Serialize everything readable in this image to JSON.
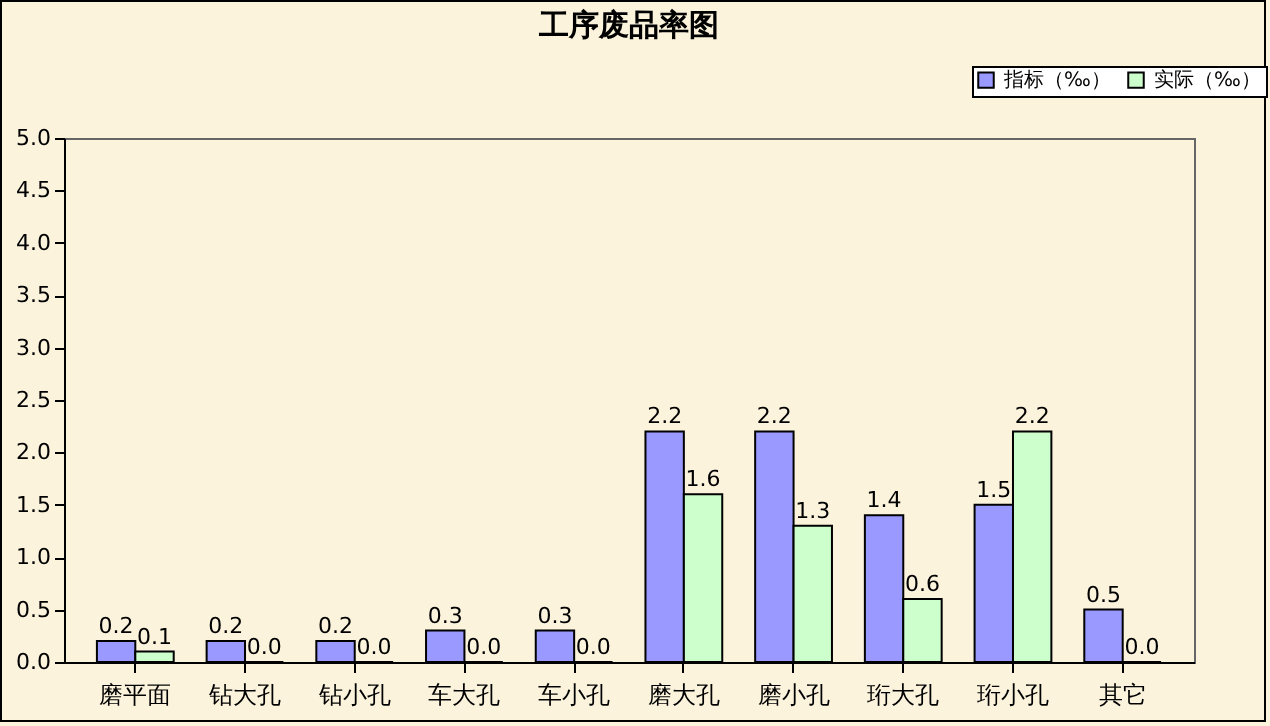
{
  "chart_data": {
    "type": "bar",
    "title": "工序废品率图",
    "categories": [
      "磨平面",
      "钻大孔",
      "钻小孔",
      "车大孔",
      "车小孔",
      "磨大孔",
      "磨小孔",
      "珩大孔",
      "珩小孔",
      "其它"
    ],
    "series": [
      {
        "name": "指标（‰）",
        "color": "#9999ff",
        "values": [
          0.2,
          0.2,
          0.2,
          0.3,
          0.3,
          2.2,
          2.2,
          1.4,
          1.5,
          0.5
        ],
        "value_labels": [
          "0.2",
          "0.2",
          "0.2",
          "0.3",
          "0.3",
          "2.2",
          "2.2",
          "1.4",
          "1.5",
          "0.5"
        ]
      },
      {
        "name": "实际（‰）",
        "color": "#ccffcc",
        "values": [
          0.1,
          0.0,
          0.0,
          0.0,
          0.0,
          1.6,
          1.3,
          0.6,
          2.2,
          0.0
        ],
        "value_labels": [
          "0.1",
          "0.0",
          "0.0",
          "0.0",
          "0.0",
          "1.6",
          "1.3",
          "0.6",
          "2.2",
          "0.0"
        ]
      }
    ],
    "ylim": [
      0,
      5
    ],
    "yticks": [
      {
        "value": 0,
        "label": "0.0"
      },
      {
        "value": 0.5,
        "label": "0.5"
      },
      {
        "value": 1,
        "label": "1.0"
      },
      {
        "value": 1.5,
        "label": "1.5"
      },
      {
        "value": 2,
        "label": "2.0"
      },
      {
        "value": 2.5,
        "label": "2.5"
      },
      {
        "value": 3,
        "label": "3.0"
      },
      {
        "value": 3.5,
        "label": "3.5"
      },
      {
        "value": 4,
        "label": "4.0"
      },
      {
        "value": 4.5,
        "label": "4.5"
      },
      {
        "value": 5,
        "label": "5.0"
      }
    ],
    "grid": false,
    "legend": "top right"
  }
}
